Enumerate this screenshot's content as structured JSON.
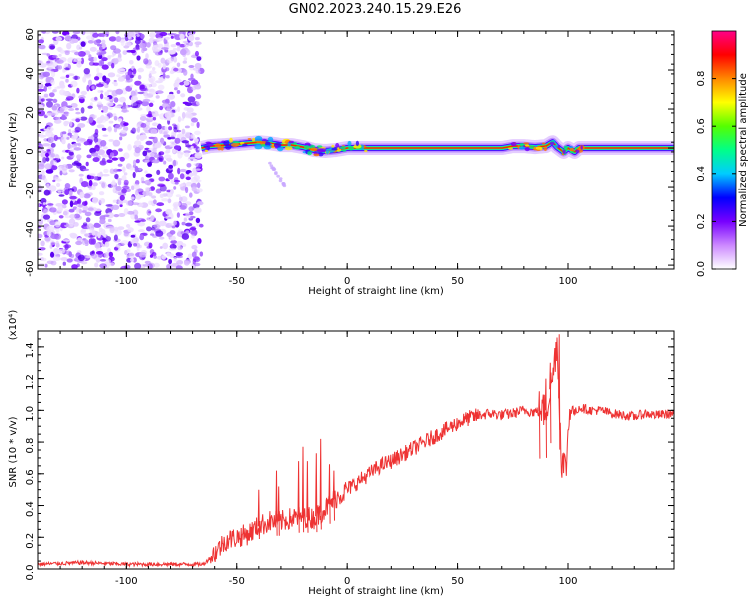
{
  "figure_title": "GN02.2023.240.15.29.E26",
  "chart_data": [
    {
      "type": "heatmap",
      "title": "GN02.2023.240.15.29.E26",
      "xlabel": "Height of straight line (km)",
      "ylabel": "Frequency (Hz)",
      "xlim": [
        -140,
        148
      ],
      "ylim": [
        -62,
        60
      ],
      "x_ticks": [
        -100,
        -50,
        0,
        50,
        100
      ],
      "x_tick_labels": [
        "-100",
        "-50",
        "0",
        "50",
        "100"
      ],
      "y_ticks": [
        60,
        40,
        20,
        0,
        -20,
        -40,
        -60
      ],
      "y_tick_labels": [
        "60",
        "40",
        "20",
        "0",
        "-20",
        "-40",
        "-60"
      ],
      "colorbar": {
        "label": "Normalized spectral amplitude",
        "range": [
          0,
          1
        ],
        "ticks": [
          0,
          0.2,
          0.4,
          0.6,
          0.8
        ],
        "tick_labels": [
          "0.0",
          "0.2",
          "0.4",
          "0.6",
          "0.8"
        ],
        "colors": [
          "#ffffff",
          "#cc88ff",
          "#7700ff",
          "#0000ff",
          "#00ccff",
          "#00ff88",
          "#55ff00",
          "#ffff00",
          "#ff8800",
          "#ff0000",
          "#ff0088"
        ]
      },
      "noise_region_x": [
        -140,
        -66
      ],
      "ridge": {
        "x": [
          -66,
          -62,
          -55,
          -50,
          -45,
          -40,
          -35,
          -30,
          -25,
          -20,
          -15,
          -10,
          -5,
          0,
          5,
          10,
          20,
          40,
          60,
          70,
          75,
          80,
          85,
          90,
          93,
          95,
          98,
          100,
          103,
          105,
          110,
          130,
          148
        ],
        "freq": [
          0,
          1,
          1.5,
          2,
          2.5,
          3,
          2.5,
          1.5,
          1.5,
          0.5,
          -1,
          -1.5,
          -1,
          0,
          0,
          0,
          0,
          0,
          0,
          0,
          1,
          1,
          0.5,
          1,
          3,
          0.5,
          -2,
          0,
          -2,
          0,
          0,
          0,
          0
        ],
        "peak_amplitude": 1.0
      },
      "faint_tail": {
        "x": [
          -35,
          -27
        ],
        "freq": [
          -8,
          -22
        ]
      }
    },
    {
      "type": "line",
      "xlabel": "Height of straight line (km)",
      "ylabel": "SNR (10 * v/v)",
      "y_multiplier": "(x10⁴)",
      "xlim": [
        -140,
        148
      ],
      "ylim": [
        0,
        1.5
      ],
      "x_ticks": [
        -100,
        -50,
        0,
        50,
        100
      ],
      "x_tick_labels": [
        "-100",
        "-50",
        "0",
        "50",
        "100"
      ],
      "y_ticks": [
        0,
        0.2,
        0.4,
        0.6,
        0.8,
        1.0,
        1.2,
        1.4
      ],
      "y_tick_labels": [
        "0.0",
        "0.2",
        "0.4",
        "0.6",
        "0.8",
        "1.0",
        "1.2",
        "1.4"
      ],
      "color": "#ee3333",
      "series": [
        {
          "x": [
            -140,
            -120,
            -100,
            -80,
            -65,
            -60,
            -55,
            -50,
            -45,
            -40,
            -35,
            -30,
            -25,
            -20,
            -15,
            -10,
            -5,
            0,
            5,
            10,
            15,
            20,
            25,
            30,
            35,
            40,
            45,
            50,
            55,
            60,
            65,
            70,
            75,
            80,
            85,
            90,
            93,
            95,
            97,
            99,
            101,
            103,
            105,
            110,
            115,
            120,
            125,
            130,
            135,
            140,
            148
          ],
          "values": [
            0.03,
            0.04,
            0.03,
            0.03,
            0.03,
            0.1,
            0.18,
            0.2,
            0.22,
            0.27,
            0.3,
            0.3,
            0.32,
            0.33,
            0.32,
            0.38,
            0.45,
            0.5,
            0.55,
            0.6,
            0.65,
            0.68,
            0.72,
            0.76,
            0.8,
            0.84,
            0.88,
            0.92,
            0.95,
            0.97,
            0.98,
            0.97,
            0.98,
            1.0,
            0.99,
            1.0,
            1.2,
            1.45,
            0.7,
            0.62,
            1.05,
            0.98,
            1.02,
            1.0,
            1.0,
            0.98,
            0.97,
            0.96,
            0.98,
            0.97,
            0.98
          ]
        }
      ],
      "spikes": [
        {
          "x": -40,
          "y": 0.5
        },
        {
          "x": -32,
          "y": 0.62
        },
        {
          "x": -31,
          "y": 0.52
        },
        {
          "x": -22,
          "y": 0.68
        },
        {
          "x": -20,
          "y": 0.77
        },
        {
          "x": -18,
          "y": 0.68
        },
        {
          "x": -14,
          "y": 0.73
        },
        {
          "x": -12,
          "y": 0.82
        },
        {
          "x": -8,
          "y": 0.66
        },
        {
          "x": -6,
          "y": 0.62
        },
        {
          "x": 87,
          "y": 1.12
        },
        {
          "x": 90,
          "y": 1.2
        },
        {
          "x": 92,
          "y": 1.3
        },
        {
          "x": 96,
          "y": 1.48
        }
      ]
    }
  ]
}
